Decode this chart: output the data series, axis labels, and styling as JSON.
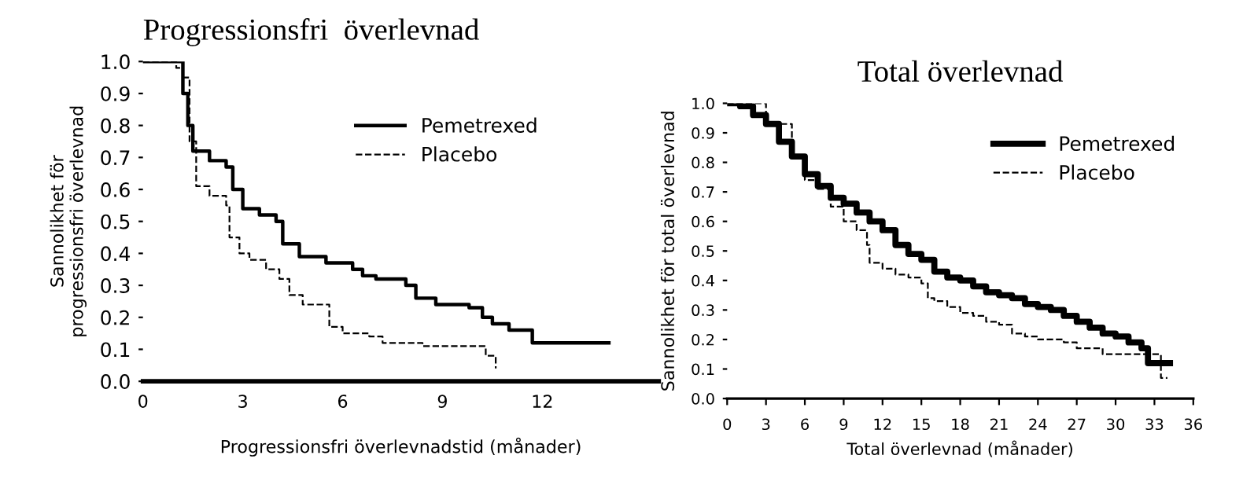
{
  "chart_data": [
    {
      "type": "step",
      "title": "Progressionsfri  överlevnad",
      "xlabel": "Progressionsfri överlevnadstid (månader)",
      "ylabel": "Sannolikhet för\nprogressionsfri överlevnad",
      "xlim": [
        0,
        15.5
      ],
      "xticks": [
        0,
        3,
        6,
        9,
        12
      ],
      "ylim": [
        0,
        1.0
      ],
      "yticks": [
        {
          "value": 0,
          "label": "0.0"
        },
        {
          "value": 0.1,
          "label": "0.1"
        },
        {
          "value": 0.2,
          "label": "0.2"
        },
        {
          "value": 0.3,
          "label": "0.3"
        },
        {
          "value": 0.4,
          "label": "0.4"
        },
        {
          "value": 0.5,
          "label": "0.5"
        },
        {
          "value": 0.6,
          "label": "0.6"
        },
        {
          "value": 0.7,
          "label": "0.7"
        },
        {
          "value": 0.8,
          "label": "0.8"
        },
        {
          "value": 0.9,
          "label": "0.9"
        },
        {
          "value": 1.0,
          "label": "1.0"
        }
      ],
      "legend": "top right",
      "grid": false,
      "series": [
        {
          "name": "Pemetrexed",
          "color": "#000000",
          "line_style": "solid",
          "x": [
            0,
            0.9,
            1.2,
            1.35,
            1.5,
            2.0,
            2.5,
            2.7,
            3.0,
            3.5,
            4.0,
            4.2,
            4.7,
            5.5,
            6.3,
            6.6,
            7.0,
            7.9,
            8.2,
            8.8,
            9.5,
            9.8,
            10.2,
            10.5,
            11.0,
            11.7,
            14.0
          ],
          "values": [
            1.0,
            1.0,
            0.9,
            0.8,
            0.72,
            0.69,
            0.67,
            0.6,
            0.54,
            0.52,
            0.5,
            0.43,
            0.39,
            0.37,
            0.35,
            0.33,
            0.32,
            0.3,
            0.26,
            0.24,
            0.24,
            0.23,
            0.2,
            0.18,
            0.16,
            0.12,
            0.12
          ]
        },
        {
          "name": "Placebo",
          "color": "#000000",
          "line_style": "dashed",
          "x": [
            0,
            1.0,
            1.2,
            1.4,
            1.6,
            2.0,
            2.5,
            2.6,
            2.9,
            3.2,
            3.7,
            4.1,
            4.4,
            4.8,
            5.4,
            5.6,
            6.0,
            6.8,
            7.2,
            8.4,
            10.0,
            10.3,
            10.6
          ],
          "values": [
            1.0,
            0.98,
            0.95,
            0.75,
            0.61,
            0.58,
            0.55,
            0.45,
            0.4,
            0.38,
            0.35,
            0.32,
            0.27,
            0.24,
            0.24,
            0.17,
            0.15,
            0.14,
            0.12,
            0.11,
            0.11,
            0.08,
            0.04
          ]
        }
      ]
    },
    {
      "type": "step",
      "title": "Total överlevnad",
      "xlabel": "Total överlevnad (månader)",
      "ylabel": "Sannolikhet för total överlevnad",
      "xlim": [
        0,
        36
      ],
      "xticks": [
        0,
        3,
        6,
        9,
        12,
        15,
        18,
        21,
        24,
        27,
        30,
        33,
        36
      ],
      "ylim": [
        0,
        1.0
      ],
      "yticks": [
        {
          "value": 0,
          "label": "0.0"
        },
        {
          "value": 0.1,
          "label": "0.1"
        },
        {
          "value": 0.2,
          "label": "0.2"
        },
        {
          "value": 0.3,
          "label": "0.3"
        },
        {
          "value": 0.4,
          "label": "0.4"
        },
        {
          "value": 0.5,
          "label": "0.5"
        },
        {
          "value": 0.6,
          "label": "0.6"
        },
        {
          "value": 0.7,
          "label": "0.7"
        },
        {
          "value": 0.8,
          "label": "0.8"
        },
        {
          "value": 0.9,
          "label": "0.9"
        },
        {
          "value": 1.0,
          "label": "1.0"
        }
      ],
      "legend": "top right",
      "grid": false,
      "series": [
        {
          "name": "Pemetrexed",
          "color": "#000000",
          "line_style": "solid",
          "x": [
            0,
            1,
            2,
            3,
            4,
            5,
            6,
            7,
            8,
            9,
            10,
            11,
            12,
            13,
            14,
            15,
            16,
            17,
            18,
            19,
            20,
            21,
            22,
            23,
            24,
            25,
            26,
            27,
            28,
            29,
            30,
            31,
            32,
            32.5,
            34.2
          ],
          "values": [
            1.0,
            0.99,
            0.96,
            0.93,
            0.87,
            0.82,
            0.76,
            0.72,
            0.68,
            0.66,
            0.63,
            0.6,
            0.57,
            0.52,
            0.49,
            0.47,
            0.43,
            0.41,
            0.4,
            0.38,
            0.36,
            0.35,
            0.34,
            0.32,
            0.31,
            0.3,
            0.28,
            0.26,
            0.24,
            0.22,
            0.21,
            0.19,
            0.17,
            0.12,
            0.12
          ]
        },
        {
          "name": "Placebo",
          "color": "#000000",
          "line_style": "dashed",
          "x": [
            0,
            3,
            5,
            6,
            7,
            8,
            9,
            10,
            10.8,
            11,
            12,
            13,
            14,
            15,
            15.5,
            16,
            17,
            18,
            19,
            20,
            21,
            22,
            23,
            24,
            26,
            27,
            29,
            33,
            33.5,
            34
          ],
          "values": [
            1.0,
            0.93,
            0.82,
            0.74,
            0.71,
            0.65,
            0.6,
            0.57,
            0.52,
            0.46,
            0.44,
            0.42,
            0.41,
            0.39,
            0.34,
            0.33,
            0.31,
            0.29,
            0.28,
            0.26,
            0.25,
            0.22,
            0.21,
            0.2,
            0.19,
            0.17,
            0.15,
            0.15,
            0.07,
            0.07
          ]
        }
      ]
    }
  ]
}
